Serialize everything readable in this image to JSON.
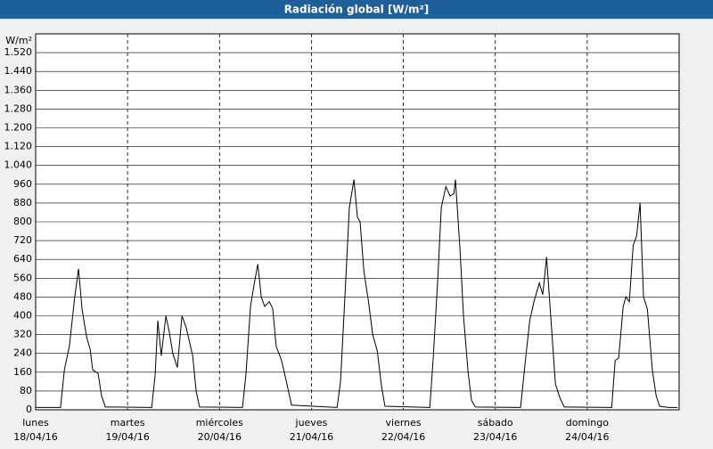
{
  "chart_data": {
    "type": "line",
    "title": "Radiación global [W/m²]",
    "y_label": "W/m²",
    "xlim": [
      0,
      168
    ],
    "ylim": [
      0,
      1600
    ],
    "xticks": [
      {
        "value": 0,
        "label": "lunes"
      },
      {
        "value": 24,
        "label": "martes"
      },
      {
        "value": 48,
        "label": "miércoles"
      },
      {
        "value": 72,
        "label": "jueves"
      },
      {
        "value": 96,
        "label": "viernes"
      },
      {
        "value": 120,
        "label": "sábado"
      },
      {
        "value": 144,
        "label": "domingo"
      }
    ],
    "xtick_dates": [
      "18/04/16",
      "19/04/16",
      "20/04/16",
      "21/04/16",
      "22/04/16",
      "23/04/16",
      "24/04/16"
    ],
    "yticks": [
      0,
      80,
      160,
      240,
      320,
      400,
      480,
      560,
      640,
      720,
      800,
      880,
      960,
      {
        "value": 1040,
        "label": "1.040"
      },
      {
        "value": 1120,
        "label": "1.120"
      },
      {
        "value": 1200,
        "label": "1.200"
      },
      {
        "value": 1280,
        "label": "1.280"
      },
      {
        "value": 1360,
        "label": "1.360"
      },
      {
        "value": 1440,
        "label": "1.440"
      },
      {
        "value": 1520,
        "label": "1.520"
      }
    ],
    "grid": true,
    "series": [
      {
        "color": "#000000",
        "x": [
          0,
          6.5,
          7.5,
          8.8,
          10.2,
          11.2,
          12.1,
          13.3,
          14.2,
          14.9,
          16.3,
          17.2,
          18.2,
          30.3,
          31.2,
          31.9,
          32.8,
          34.0,
          34.9,
          35.8,
          37.0,
          38.2,
          39.3,
          41,
          41.9,
          42.8,
          54,
          54.9,
          56.1,
          57,
          58,
          58.9,
          59.8,
          61,
          61.9,
          62.8,
          64.2,
          65.6,
          66.8,
          78.7,
          79.6,
          80.8,
          81.9,
          83.1,
          84,
          84.7,
          85.7,
          86.9,
          88,
          89.2,
          90.3,
          91.2,
          102.9,
          103.8,
          105,
          105.9,
          107.1,
          108.2,
          109.2,
          109.6,
          110.8,
          111.7,
          112.9,
          113.8,
          114.8,
          126.6,
          127.8,
          129,
          130.1,
          131.5,
          132.4,
          133.4,
          134.3,
          135.7,
          136.9,
          138,
          150.4,
          151.3,
          152.2,
          153.4,
          154.1,
          155,
          156,
          156.9,
          157.8,
          158.7,
          159.7,
          161,
          162,
          162.9,
          165.3,
          167.6
        ],
        "values": [
          10,
          10,
          170,
          270,
          480,
          600,
          430,
          310,
          260,
          170,
          155,
          60,
          12,
          10,
          150,
          380,
          230,
          400,
          330,
          240,
          180,
          400,
          350,
          230,
          80,
          12,
          10,
          150,
          440,
          530,
          620,
          480,
          440,
          460,
          430,
          270,
          210,
          110,
          20,
          10,
          120,
          500,
          860,
          980,
          820,
          800,
          590,
          460,
          320,
          250,
          100,
          15,
          10,
          220,
          560,
          860,
          950,
          910,
          920,
          980,
          680,
          400,
          160,
          40,
          12,
          10,
          200,
          380,
          460,
          540,
          490,
          650,
          440,
          110,
          50,
          12,
          10,
          210,
          220,
          440,
          480,
          460,
          700,
          740,
          880,
          480,
          430,
          170,
          60,
          15,
          10,
          10
        ]
      }
    ]
  }
}
